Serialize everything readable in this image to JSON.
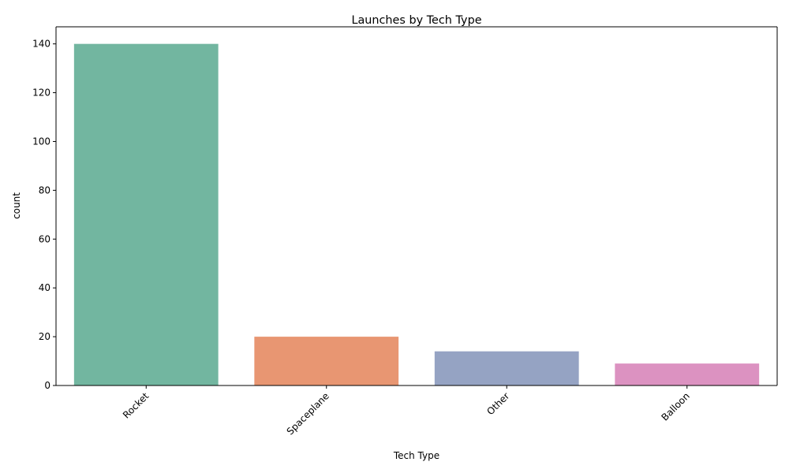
{
  "chart_data": {
    "type": "bar",
    "title": "Launches by Tech Type",
    "xlabel": "Tech Type",
    "ylabel": "count",
    "categories": [
      "Rocket",
      "Spaceplane",
      "Other",
      "Balloon"
    ],
    "values": [
      140,
      20,
      14,
      9
    ],
    "colors": [
      "#72b6a0",
      "#e89672",
      "#95a3c3",
      "#dc92c1"
    ],
    "ylim": [
      0,
      147
    ],
    "yticks": [
      0,
      20,
      40,
      60,
      80,
      100,
      120,
      140
    ],
    "grid": false,
    "legend": "none"
  }
}
